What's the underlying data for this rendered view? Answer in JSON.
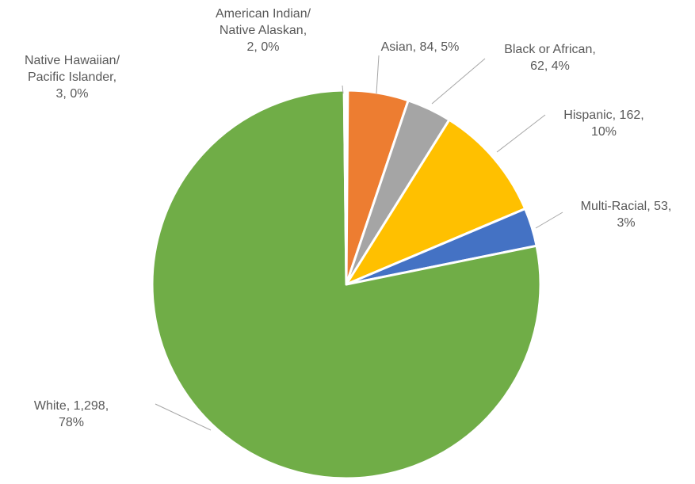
{
  "chart_data": {
    "type": "pie",
    "title": "",
    "start_angle_deg": 0,
    "direction": "clockwise",
    "label_format": "category, value, percent",
    "slice_border_color": "#ffffff",
    "leader_line_color": "#a6a6a6",
    "label_color": "#595959",
    "slices": [
      {
        "name": "American Indian/ Native Alaskan",
        "value": 2,
        "percent_label": "0%",
        "color": "#5b9bd5",
        "label_lines": [
          "American Indian/",
          "Native Alaskan,",
          "2, 0%"
        ]
      },
      {
        "name": "Asian",
        "value": 84,
        "percent_label": "5%",
        "color": "#ed7d31",
        "label_lines": [
          "Asian, 84, 5%"
        ]
      },
      {
        "name": "Black or African",
        "value": 62,
        "percent_label": "4%",
        "color": "#a5a5a5",
        "label_lines": [
          "Black or African,",
          "62, 4%"
        ]
      },
      {
        "name": "Hispanic",
        "value": 162,
        "percent_label": "10%",
        "color": "#ffc000",
        "label_lines": [
          "Hispanic, 162,",
          "10%"
        ]
      },
      {
        "name": "Multi-Racial",
        "value": 53,
        "percent_label": "3%",
        "color": "#4472c4",
        "label_lines": [
          "Multi-Racial, 53,",
          "3%"
        ]
      },
      {
        "name": "White",
        "value": 1298,
        "percent_label": "78%",
        "color": "#70ad47",
        "label_lines": [
          "White, 1,298,",
          "78%"
        ]
      },
      {
        "name": "Native Hawaiian/ Pacific Islander",
        "value": 3,
        "percent_label": "0%",
        "color": "#264478",
        "label_lines": [
          "Native Hawaiian/",
          "Pacific Islander,",
          "3, 0%"
        ]
      }
    ]
  }
}
